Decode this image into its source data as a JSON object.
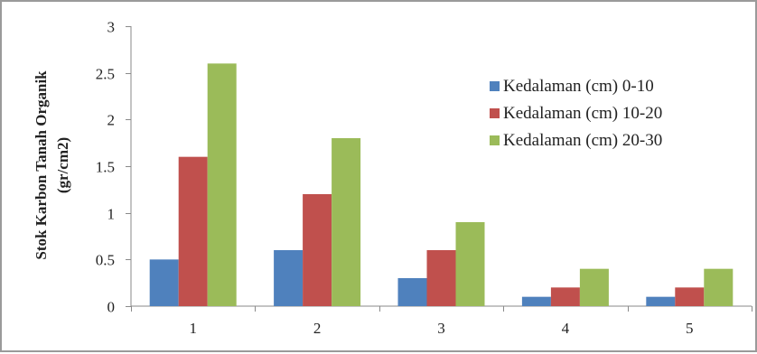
{
  "chart_data": {
    "type": "bar",
    "categories": [
      "1",
      "2",
      "3",
      "4",
      "5"
    ],
    "series": [
      {
        "name": "Kedalaman (cm) 0-10",
        "color": "#4f81bd",
        "values": [
          0.5,
          0.6,
          0.3,
          0.1,
          0.1
        ]
      },
      {
        "name": "Kedalaman (cm) 10-20",
        "color": "#c0504d",
        "values": [
          1.6,
          1.2,
          0.6,
          0.2,
          0.2
        ]
      },
      {
        "name": "Kedalaman (cm) 20-30",
        "color": "#9bbb59",
        "values": [
          2.6,
          1.8,
          0.9,
          0.4,
          0.4
        ]
      }
    ],
    "ylabel_line1": "Stok Karbon Tanah Organik",
    "ylabel_line2": "(gr/cm2)",
    "xlabel": "",
    "ylim": [
      0,
      3
    ],
    "yticks": [
      "0",
      "0.5",
      "1",
      "1.5",
      "2",
      "2.5",
      "3"
    ],
    "grid": false,
    "legend_position": "top-right"
  }
}
